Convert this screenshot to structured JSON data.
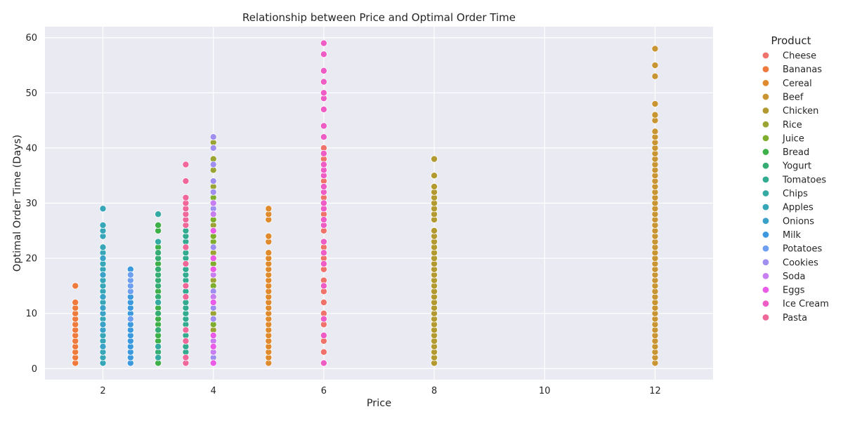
{
  "chart_data": {
    "type": "scatter",
    "title": "Relationship between Price and Optimal Order Time",
    "xlabel": "Price",
    "ylabel": "Optimal Order Time (Days)",
    "xlim": [
      0.95,
      13.05
    ],
    "ylim": [
      -2,
      62
    ],
    "xticks": [
      2,
      4,
      6,
      8,
      10,
      12
    ],
    "yticks": [
      0,
      10,
      20,
      30,
      40,
      50,
      60
    ],
    "grid": true,
    "legend_position": "right",
    "legend_title": "Product",
    "series": [
      {
        "name": "Cheese",
        "color": "#f0736b",
        "x": 6,
        "values": [
          1,
          3,
          5,
          8,
          10,
          12,
          14,
          16,
          18,
          20,
          22,
          25,
          28,
          31,
          34,
          36,
          38,
          40
        ]
      },
      {
        "name": "Bananas",
        "color": "#ef7a3c",
        "x": 1.5,
        "values": [
          1,
          2,
          3,
          4,
          5,
          6,
          7,
          8,
          9,
          10,
          11,
          12,
          15
        ]
      },
      {
        "name": "Cereal",
        "color": "#e08a2e",
        "x": 5,
        "values": [
          1,
          2,
          3,
          4,
          5,
          6,
          7,
          8,
          9,
          10,
          11,
          12,
          13,
          14,
          15,
          16,
          17,
          18,
          19,
          20,
          21,
          23,
          24,
          27,
          28,
          29
        ]
      },
      {
        "name": "Beef",
        "color": "#c99533",
        "x": 12,
        "values": [
          1,
          2,
          3,
          4,
          5,
          6,
          7,
          8,
          9,
          10,
          11,
          12,
          13,
          14,
          15,
          16,
          17,
          18,
          19,
          20,
          21,
          22,
          23,
          24,
          25,
          26,
          27,
          28,
          29,
          30,
          31,
          32,
          33,
          34,
          35,
          36,
          37,
          38,
          39,
          40,
          41,
          42,
          43,
          45,
          46,
          48,
          53,
          55,
          58
        ]
      },
      {
        "name": "Chicken",
        "color": "#b29a30",
        "x": 8,
        "values": [
          1,
          2,
          3,
          4,
          5,
          6,
          7,
          8,
          9,
          10,
          11,
          12,
          13,
          14,
          15,
          16,
          17,
          18,
          19,
          20,
          21,
          22,
          23,
          24,
          25,
          27,
          28,
          29,
          30,
          31,
          32,
          33,
          35,
          38
        ]
      },
      {
        "name": "Rice",
        "color": "#9ba332",
        "x": 4,
        "values": [
          7,
          10,
          12,
          16,
          21,
          26,
          28,
          33,
          36,
          38,
          40,
          41
        ]
      },
      {
        "name": "Juice",
        "color": "#7fae2f",
        "x": 4,
        "values": [
          6,
          8,
          15,
          19,
          23,
          24,
          27,
          31
        ]
      },
      {
        "name": "Bread",
        "color": "#3fb049",
        "x": 3,
        "values": [
          1,
          5,
          6,
          8,
          9,
          11,
          14,
          19,
          22,
          25,
          26
        ]
      },
      {
        "name": "Yogurt",
        "color": "#36ad74",
        "x": 3,
        "values": [
          3,
          7,
          10,
          13,
          15,
          16,
          17,
          18,
          20,
          21
        ]
      },
      {
        "name": "Tomatoes",
        "color": "#33ab91",
        "x": 3.5,
        "values": [
          3,
          4,
          6,
          8,
          9,
          10,
          11,
          12,
          14,
          16,
          17,
          18,
          20,
          21,
          23,
          24,
          25
        ]
      },
      {
        "name": "Chips",
        "color": "#35aaa3",
        "x": 3,
        "values": [
          2,
          4,
          12,
          23,
          28
        ]
      },
      {
        "name": "Apples",
        "color": "#37a6b8",
        "x": 2,
        "values": [
          1,
          2,
          3,
          5,
          6,
          9,
          12,
          14,
          15,
          16,
          18,
          19,
          21,
          22,
          24,
          25,
          26,
          29
        ]
      },
      {
        "name": "Onions",
        "color": "#3aa2c8",
        "x": 2,
        "values": [
          4,
          7,
          8,
          10,
          11,
          13,
          17,
          20
        ]
      },
      {
        "name": "Milk",
        "color": "#3c99de",
        "x": 2.5,
        "values": [
          1,
          2,
          3,
          4,
          5,
          6,
          7,
          8,
          10,
          11,
          12,
          13,
          18
        ]
      },
      {
        "name": "Potatoes",
        "color": "#6f9ff0",
        "x": 2.5,
        "values": [
          9,
          14,
          15,
          16,
          17
        ]
      },
      {
        "name": "Cookies",
        "color": "#a08ff0",
        "x": 4,
        "values": [
          2,
          9,
          11,
          14,
          22,
          29,
          32,
          34,
          37,
          40,
          42
        ]
      },
      {
        "name": "Soda",
        "color": "#c77ef0",
        "x": 4,
        "values": [
          3,
          5,
          13,
          17,
          28,
          30
        ]
      },
      {
        "name": "Eggs",
        "color": "#ea5ce8",
        "x": 4,
        "values": [
          1,
          4,
          6,
          12,
          18,
          20,
          25
        ]
      },
      {
        "name": "Ice Cream",
        "color": "#ee5cc5",
        "x": 6,
        "values": [
          1,
          6,
          9,
          15,
          19,
          21,
          23,
          26,
          27,
          29,
          30,
          32,
          33,
          35,
          36,
          37,
          39,
          42,
          44,
          47,
          49,
          50,
          52,
          54,
          57,
          59
        ]
      },
      {
        "name": "Pasta",
        "color": "#f0679a",
        "x": 3.5,
        "values": [
          1,
          2,
          5,
          7,
          13,
          15,
          19,
          22,
          26,
          27,
          28,
          29,
          30,
          31,
          34,
          37
        ]
      }
    ]
  }
}
